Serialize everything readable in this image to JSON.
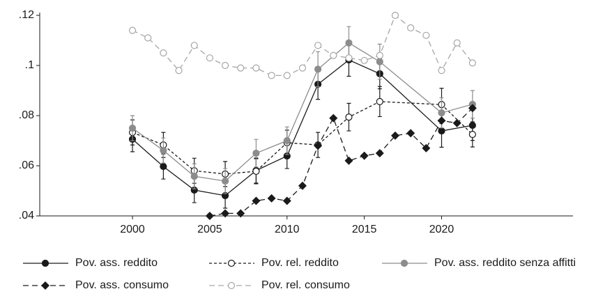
{
  "chart_data": {
    "type": "line",
    "xlim": [
      1994,
      2028.5
    ],
    "xticks": [
      2000,
      2005,
      2010,
      2015,
      2020
    ],
    "ylim": [
      0.04,
      0.12
    ],
    "yticks": [
      {
        "value": 0.04,
        "label": ".04"
      },
      {
        "value": 0.06,
        "label": ".06"
      },
      {
        "value": 0.08,
        "label": ".08"
      },
      {
        "value": 0.1,
        "label": ".1"
      },
      {
        "value": 0.12,
        "label": ".12"
      }
    ],
    "legend": "bottom",
    "series": [
      {
        "name": "Pov. ass. reddito",
        "color": "#1a1a1a",
        "linestyle": "solid",
        "marker": "circle",
        "x": [
          2000,
          2002,
          2004,
          2006,
          2008,
          2010,
          2012,
          2014,
          2016,
          2020,
          2022
        ],
        "values": [
          0.0706,
          0.0597,
          0.0503,
          0.0481,
          0.0581,
          0.0639,
          0.0925,
          0.1022,
          0.0967,
          0.0739,
          0.0761
        ],
        "errors": [
          0.005,
          0.005,
          0.005,
          0.005,
          0.005,
          0.005,
          0.006,
          0.0065,
          0.006,
          0.0065,
          0.006
        ]
      },
      {
        "name": "Pov. rel. reddito",
        "color": "#1a1a1a",
        "linestyle": "dashed",
        "marker": "open-circle",
        "x": [
          2000,
          2002,
          2004,
          2006,
          2008,
          2010,
          2012,
          2014,
          2016,
          2020,
          2022
        ],
        "values": [
          0.0733,
          0.0683,
          0.058,
          0.0567,
          0.0578,
          0.0692,
          0.0683,
          0.0794,
          0.0856,
          0.0844,
          0.0725
        ],
        "errors": [
          0.005,
          0.005,
          0.005,
          0.005,
          0.005,
          0.005,
          0.005,
          0.0055,
          0.006,
          0.0065,
          0.005
        ]
      },
      {
        "name": "Pov. ass. reddito senza affitti",
        "color": "#8c8c8c",
        "linestyle": "solid",
        "marker": "circle",
        "x": [
          2000,
          2002,
          2004,
          2006,
          2008,
          2010,
          2012,
          2014,
          2016,
          2020,
          2022
        ],
        "values": [
          0.075,
          0.0661,
          0.0558,
          0.0539,
          0.065,
          0.07,
          0.0985,
          0.109,
          0.1015,
          0.0811,
          0.0845
        ],
        "errors": [
          0.005,
          0.005,
          0.005,
          0.005,
          0.0055,
          0.0055,
          0.007,
          0.0065,
          0.007,
          0.006,
          0.0055
        ]
      },
      {
        "name": "Pov. ass. consumo",
        "color": "#1a1a1a",
        "linestyle": "longdash",
        "marker": "diamond",
        "x": [
          2005,
          2006,
          2007,
          2008,
          2009,
          2010,
          2011,
          2012,
          2013,
          2014,
          2015,
          2016,
          2017,
          2018,
          2019,
          2020,
          2021,
          2022
        ],
        "values": [
          0.04,
          0.041,
          0.041,
          0.046,
          0.047,
          0.046,
          0.052,
          0.068,
          0.079,
          0.062,
          0.064,
          0.065,
          0.072,
          0.073,
          0.067,
          0.078,
          0.077,
          0.083
        ]
      },
      {
        "name": "Pov. rel. consumo",
        "color": "#a6a6a6",
        "linestyle": "longdash",
        "marker": "open-circle",
        "x": [
          2000,
          2001,
          2002,
          2003,
          2004,
          2005,
          2006,
          2007,
          2008,
          2009,
          2010,
          2011,
          2012,
          2013,
          2014,
          2015,
          2016,
          2017,
          2018,
          2019,
          2020,
          2021,
          2022
        ],
        "values": [
          0.114,
          0.111,
          0.105,
          0.098,
          0.108,
          0.103,
          0.1,
          0.099,
          0.099,
          0.096,
          0.096,
          0.099,
          0.108,
          0.104,
          0.103,
          0.102,
          0.104,
          0.12,
          0.115,
          0.112,
          0.098,
          0.109,
          0.101
        ]
      }
    ]
  }
}
